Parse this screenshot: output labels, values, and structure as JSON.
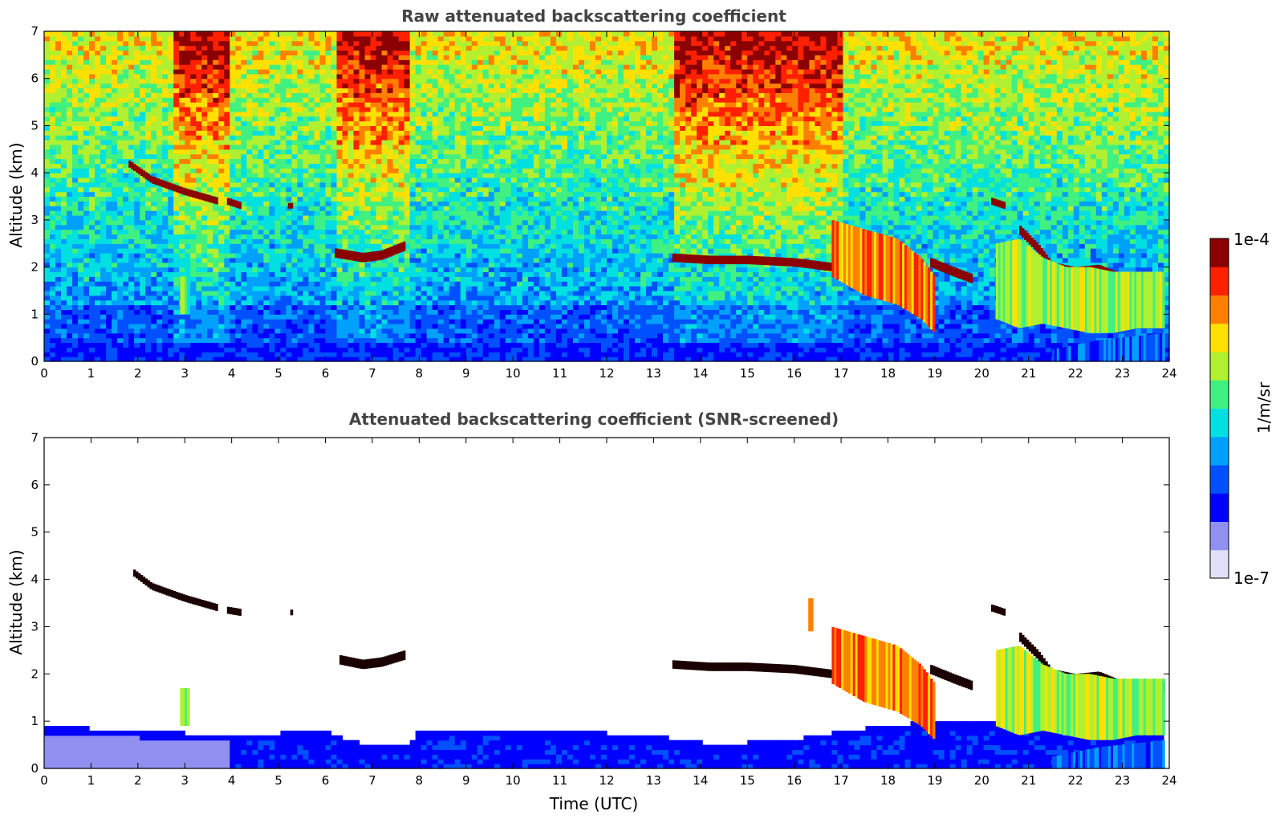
{
  "chart_data": [
    {
      "type": "heatmap",
      "title": "Raw attenuated backscattering coefficient",
      "xlabel": "",
      "ylabel": "Altitude (km)",
      "xlim": [
        0,
        24
      ],
      "ylim": [
        0,
        7
      ],
      "xticks": [
        0,
        1,
        2,
        3,
        4,
        5,
        6,
        7,
        8,
        9,
        10,
        11,
        12,
        13,
        14,
        15,
        16,
        17,
        18,
        19,
        20,
        21,
        22,
        23,
        24
      ],
      "yticks": [
        0,
        1,
        2,
        3,
        4,
        5,
        6,
        7
      ],
      "noise": {
        "surface_top_km": 0.45,
        "signal_bands": [
          [
            2.8,
            4.0
          ],
          [
            6.3,
            7.8
          ],
          [
            13.4,
            17.0
          ]
        ]
      },
      "features": [
        {
          "kind": "layer",
          "x": [
            1.8,
            2.3,
            3.0,
            3.7
          ],
          "y": [
            4.2,
            3.85,
            3.6,
            3.4
          ],
          "thickness_km": 0.15,
          "level": 0.95
        },
        {
          "kind": "layer",
          "x": [
            3.9,
            4.2
          ],
          "y": [
            3.4,
            3.3
          ],
          "thickness_km": 0.15,
          "level": 0.95
        },
        {
          "kind": "layer",
          "x": [
            5.2,
            5.3
          ],
          "y": [
            3.3,
            3.3
          ],
          "thickness_km": 0.12,
          "level": 0.95
        },
        {
          "kind": "layer",
          "x": [
            6.2,
            6.8,
            7.2,
            7.7
          ],
          "y": [
            2.3,
            2.2,
            2.25,
            2.45
          ],
          "thickness_km": 0.2,
          "level": 0.95
        },
        {
          "kind": "layer",
          "x": [
            13.4,
            14.2,
            15.0,
            16.0,
            16.8
          ],
          "y": [
            2.2,
            2.15,
            2.15,
            2.1,
            2.0
          ],
          "thickness_km": 0.18,
          "level": 0.95
        },
        {
          "kind": "layer",
          "x": [
            18.9,
            19.4,
            19.8
          ],
          "y": [
            2.1,
            1.9,
            1.75
          ],
          "thickness_km": 0.2,
          "level": 0.95
        },
        {
          "kind": "layer",
          "x": [
            20.2,
            20.5
          ],
          "y": [
            3.4,
            3.3
          ],
          "thickness_km": 0.15,
          "level": 0.95
        },
        {
          "kind": "layer",
          "x": [
            20.8,
            21.2,
            21.5,
            22.0,
            22.5,
            23.0,
            23.5,
            23.9
          ],
          "y": [
            2.8,
            2.4,
            2.0,
            1.9,
            1.95,
            1.75,
            1.8,
            1.7
          ],
          "thickness_km": 0.2,
          "level": 0.95
        },
        {
          "kind": "plume",
          "x": [
            16.8,
            17.5,
            18.2,
            18.7,
            19.0
          ],
          "y0": [
            1.8,
            1.4,
            1.2,
            0.9,
            0.6
          ],
          "y1": [
            3.0,
            2.8,
            2.6,
            2.2,
            1.8
          ],
          "level": 0.78
        },
        {
          "kind": "plume",
          "x": [
            20.3,
            20.8,
            21.3,
            21.8,
            22.3,
            22.8,
            23.3,
            23.9
          ],
          "y0": [
            0.9,
            0.7,
            0.8,
            0.7,
            0.6,
            0.6,
            0.7,
            0.7
          ],
          "y1": [
            2.5,
            2.6,
            2.2,
            2.0,
            2.0,
            1.9,
            1.9,
            1.9
          ],
          "level": 0.62
        },
        {
          "kind": "plume",
          "x": [
            2.9,
            3.1
          ],
          "y0": [
            1.0,
            1.0
          ],
          "y1": [
            1.8,
            1.8
          ],
          "level": 0.55
        },
        {
          "kind": "shade",
          "x": [
            21.5,
            22.5,
            23.9
          ],
          "y0": [
            0.0,
            0.0,
            0.0
          ],
          "y1": [
            0.25,
            0.45,
            0.6
          ],
          "level": 0.3
        }
      ]
    },
    {
      "type": "heatmap",
      "title": "Attenuated backscattering coefficient (SNR-screened)",
      "xlabel": "Time (UTC)",
      "ylabel": "Altitude (km)",
      "xlim": [
        0,
        24
      ],
      "ylim": [
        0,
        7
      ],
      "xticks": [
        0,
        1,
        2,
        3,
        4,
        5,
        6,
        7,
        8,
        9,
        10,
        11,
        12,
        13,
        14,
        15,
        16,
        17,
        18,
        19,
        20,
        21,
        22,
        23,
        24
      ],
      "yticks": [
        0,
        1,
        2,
        3,
        4,
        5,
        6,
        7
      ],
      "boundary_layer": {
        "x": [
          0,
          1,
          2,
          3,
          4,
          5,
          6,
          6.5,
          7,
          7.8,
          8,
          10,
          12,
          13,
          14,
          15,
          16,
          17,
          18,
          19,
          20,
          21,
          22,
          23,
          23.9
        ],
        "top_km": [
          0.9,
          0.85,
          0.8,
          0.75,
          0.7,
          0.75,
          0.8,
          0.6,
          0.45,
          0.5,
          0.8,
          0.8,
          0.75,
          0.7,
          0.55,
          0.55,
          0.6,
          0.8,
          0.9,
          1.0,
          1.0,
          0.9,
          0.7,
          0.8,
          0.8
        ]
      },
      "features": [
        {
          "kind": "layer",
          "x": [
            1.9,
            2.3,
            3.0,
            3.7
          ],
          "y": [
            4.15,
            3.85,
            3.6,
            3.4
          ],
          "thickness_km": 0.15,
          "level": 1.0
        },
        {
          "kind": "layer",
          "x": [
            3.9,
            4.2
          ],
          "y": [
            3.35,
            3.3
          ],
          "thickness_km": 0.15,
          "level": 1.0
        },
        {
          "kind": "layer",
          "x": [
            5.25,
            5.3
          ],
          "y": [
            3.3,
            3.3
          ],
          "thickness_km": 0.12,
          "level": 1.0
        },
        {
          "kind": "layer",
          "x": [
            6.3,
            6.8,
            7.2,
            7.7
          ],
          "y": [
            2.3,
            2.2,
            2.25,
            2.4
          ],
          "thickness_km": 0.2,
          "level": 1.0
        },
        {
          "kind": "layer",
          "x": [
            13.4,
            14.2,
            15.0,
            16.0,
            16.8
          ],
          "y": [
            2.2,
            2.15,
            2.15,
            2.1,
            2.0
          ],
          "thickness_km": 0.18,
          "level": 1.0
        },
        {
          "kind": "layer",
          "x": [
            18.9,
            19.4,
            19.8
          ],
          "y": [
            2.1,
            1.9,
            1.75
          ],
          "thickness_km": 0.2,
          "level": 1.0
        },
        {
          "kind": "layer",
          "x": [
            20.2,
            20.5
          ],
          "y": [
            3.4,
            3.3
          ],
          "thickness_km": 0.15,
          "level": 1.0
        },
        {
          "kind": "layer",
          "x": [
            20.8,
            21.2,
            21.5,
            22.0,
            22.5,
            23.0,
            23.5,
            23.9
          ],
          "y": [
            2.8,
            2.4,
            2.0,
            1.9,
            1.95,
            1.75,
            1.8,
            1.7
          ],
          "thickness_km": 0.2,
          "level": 1.0
        },
        {
          "kind": "plume",
          "x": [
            16.8,
            17.5,
            18.2,
            18.7,
            19.0
          ],
          "y0": [
            1.8,
            1.4,
            1.2,
            0.9,
            0.6
          ],
          "y1": [
            3.0,
            2.8,
            2.6,
            2.2,
            1.8
          ],
          "level": 0.78
        },
        {
          "kind": "plume",
          "x": [
            20.3,
            20.8,
            21.3,
            21.8,
            22.3,
            22.8,
            23.3,
            23.9
          ],
          "y0": [
            0.9,
            0.7,
            0.8,
            0.7,
            0.6,
            0.6,
            0.7,
            0.7
          ],
          "y1": [
            2.5,
            2.6,
            2.2,
            2.0,
            2.0,
            1.9,
            1.9,
            1.9
          ],
          "level": 0.62
        },
        {
          "kind": "plume",
          "x": [
            2.9,
            3.1
          ],
          "y0": [
            0.9,
            0.9
          ],
          "y1": [
            1.7,
            1.7
          ],
          "level": 0.55
        },
        {
          "kind": "plume",
          "x": [
            16.3,
            16.4
          ],
          "y0": [
            2.9,
            2.9
          ],
          "y1": [
            3.6,
            3.6
          ],
          "level": 0.7
        },
        {
          "kind": "shade",
          "x": [
            21.5,
            22.5,
            23.9
          ],
          "y0": [
            0.0,
            0.0,
            0.0
          ],
          "y1": [
            0.25,
            0.45,
            0.6
          ],
          "level": 0.3
        }
      ]
    }
  ],
  "colorbar": {
    "label": "1/m/sr",
    "max_label": "1e-4",
    "min_label": "1e-7",
    "colormap": [
      "#e0e0f8",
      "#9090f0",
      "#0000ff",
      "#0050ff",
      "#00a0ff",
      "#00e0e0",
      "#40f080",
      "#b0f030",
      "#ffe000",
      "#ff8000",
      "#ff2000",
      "#8b0000"
    ]
  }
}
